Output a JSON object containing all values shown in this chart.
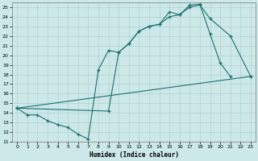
{
  "xlabel": "Humidex (Indice chaleur)",
  "bg_color": "#cce8e8",
  "grid_color": "#aacccc",
  "line_color": "#1e7070",
  "xlim": [
    -0.5,
    23.5
  ],
  "ylim": [
    11,
    25.5
  ],
  "line1_x": [
    0,
    1,
    2,
    3,
    4,
    5,
    6,
    7,
    8,
    9,
    10,
    11,
    12,
    13,
    14,
    15,
    16,
    17,
    18,
    19,
    20,
    21
  ],
  "line1_y": [
    14.5,
    13.8,
    13.8,
    13.2,
    12.8,
    12.5,
    11.8,
    11.3,
    18.5,
    20.5,
    20.3,
    21.2,
    22.5,
    23.0,
    23.2,
    24.5,
    24.2,
    25.2,
    25.3,
    22.2,
    19.2,
    17.8
  ],
  "line2_x": [
    0,
    23
  ],
  "line2_y": [
    14.5,
    17.8
  ],
  "line3_x": [
    0,
    9,
    10,
    11,
    12,
    13,
    14,
    15,
    16,
    17,
    18,
    19,
    21,
    23
  ],
  "line3_y": [
    14.5,
    14.2,
    20.3,
    21.2,
    22.5,
    23.0,
    23.2,
    24.0,
    24.2,
    25.0,
    25.2,
    23.8,
    22.0,
    17.8
  ]
}
